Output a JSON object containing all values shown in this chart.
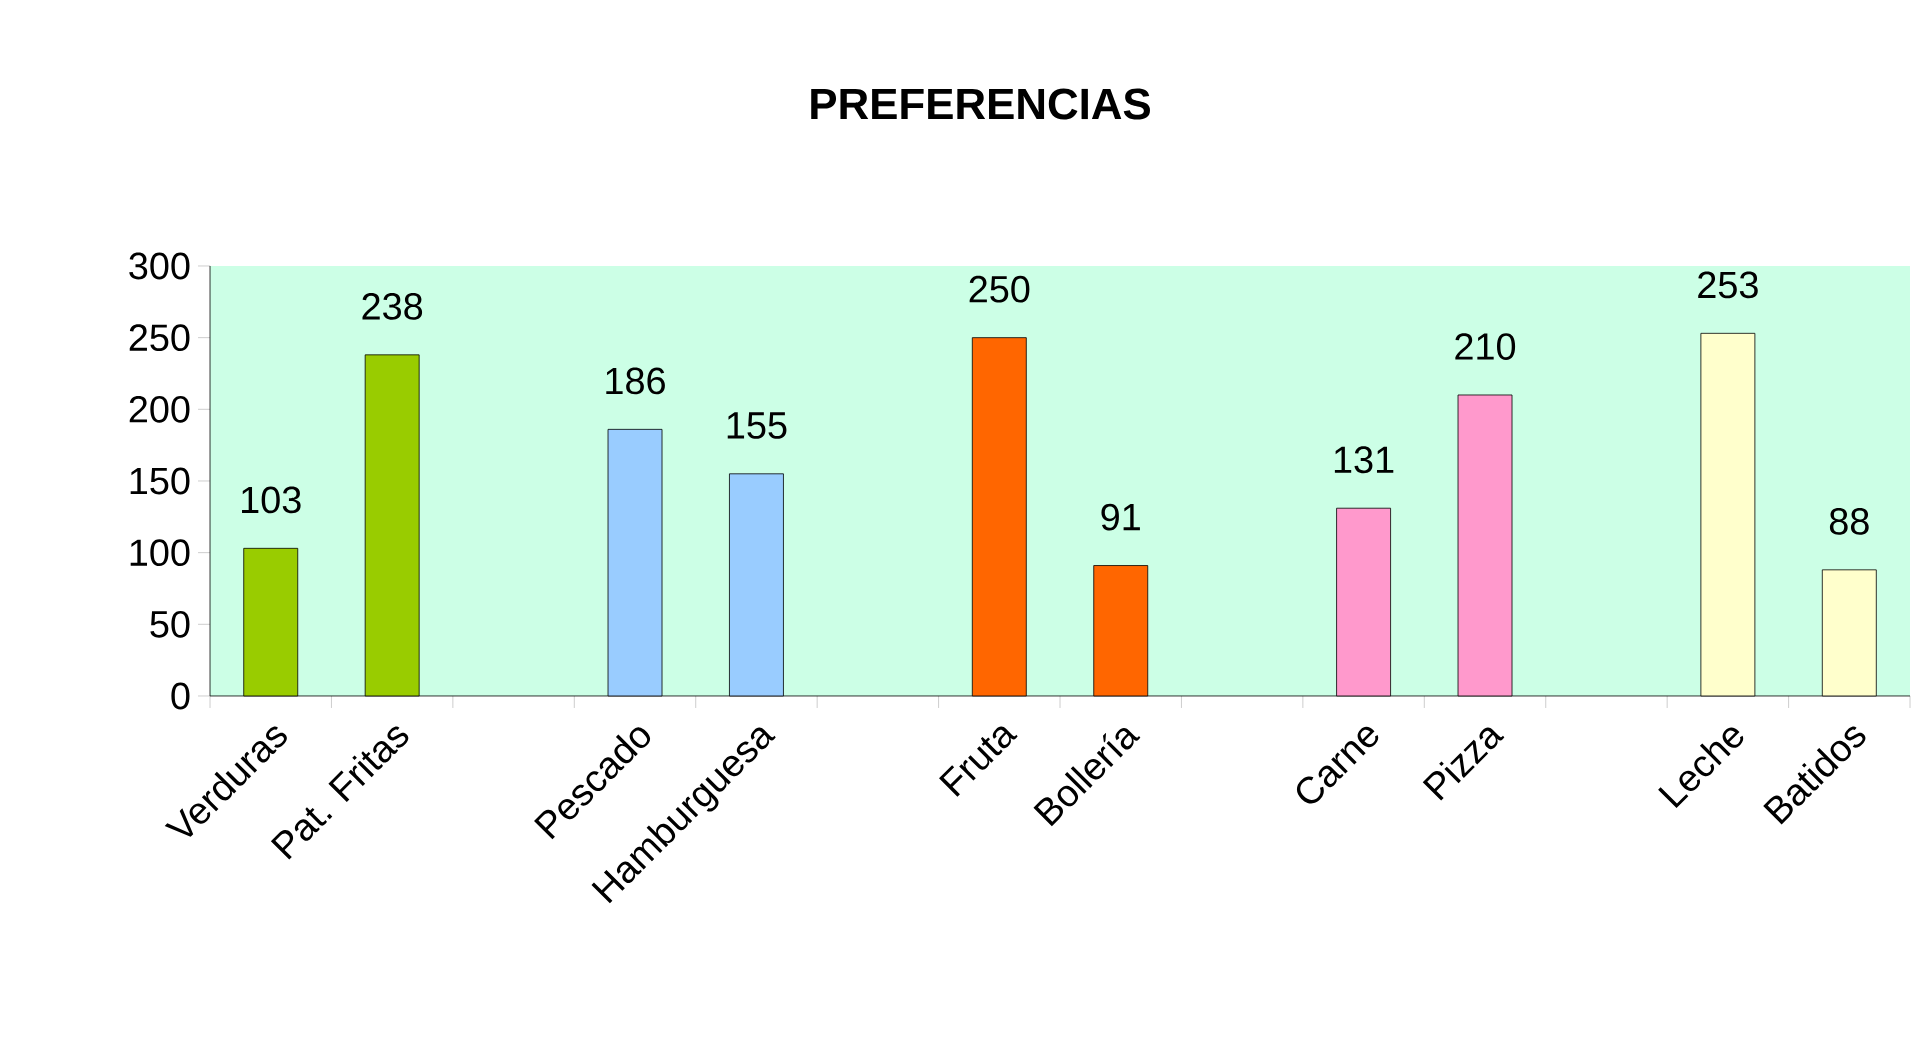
{
  "chart_data": {
    "type": "bar",
    "title": "PREFERENCIAS",
    "categories": [
      "Verduras",
      "Pat. Fritas",
      null,
      "Pescado",
      "Hamburguesa",
      null,
      "Fruta",
      "Bollería",
      null,
      "Carne",
      "Pizza",
      null,
      "Leche",
      "Batidos"
    ],
    "values": [
      103,
      238,
      null,
      186,
      155,
      null,
      250,
      91,
      null,
      131,
      210,
      null,
      253,
      88
    ],
    "colors": [
      "#99cc00",
      "#99cc00",
      null,
      "#99ccff",
      "#99ccff",
      null,
      "#ff6600",
      "#ff6600",
      null,
      "#ff99cc",
      "#ff99cc",
      null,
      "#ffffcc",
      "#ffffcc"
    ],
    "ylim": [
      0,
      300
    ],
    "yticks": [
      0,
      50,
      100,
      150,
      200,
      250,
      300
    ],
    "data_labels": true,
    "grid": false
  }
}
